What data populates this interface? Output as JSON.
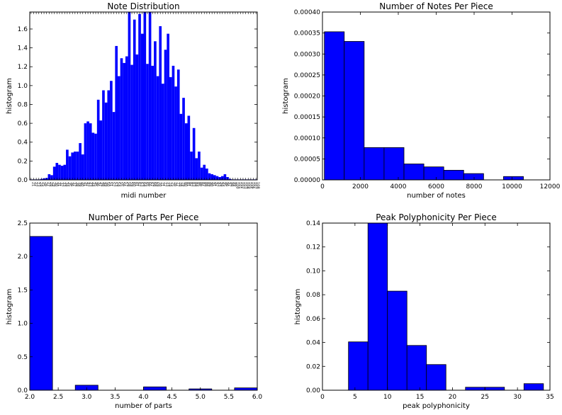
{
  "figure": {
    "background": "#ffffff"
  },
  "bar_color": "#0000ff",
  "bar_edge": "#000000",
  "chart_data": [
    {
      "type": "bar",
      "title": "Note Distribution",
      "xlabel": "midi number",
      "ylabel": "histogram",
      "xlim": [
        21,
        109
      ],
      "ylim": [
        0,
        1.78
      ],
      "yticks": [
        "0.0",
        "0.2",
        "0.4",
        "0.6",
        "0.8",
        "1.0",
        "1.2",
        "1.4",
        "1.6"
      ],
      "x_start": 21,
      "x_tick_labels": [
        "21",
        "22",
        "23",
        "24",
        "25",
        "26",
        "27",
        "28",
        "29",
        "30",
        "31",
        "32",
        "33",
        "34",
        "35",
        "36",
        "37",
        "38",
        "39",
        "40",
        "41",
        "42",
        "43",
        "44",
        "45",
        "46",
        "47",
        "48",
        "49",
        "50",
        "51",
        "52",
        "53",
        "54",
        "55",
        "56",
        "57",
        "58",
        "59",
        "60",
        "61",
        "62",
        "63",
        "64",
        "65",
        "66",
        "67",
        "68",
        "69",
        "70",
        "71",
        "72",
        "73",
        "74",
        "75",
        "76",
        "77",
        "78",
        "79",
        "80",
        "81",
        "82",
        "83",
        "84",
        "85",
        "86",
        "87",
        "88",
        "89",
        "90",
        "91",
        "92",
        "93",
        "94",
        "95",
        "96",
        "97",
        "98",
        "99",
        "100",
        "101",
        "102",
        "103",
        "104",
        "105",
        "106",
        "107",
        "108"
      ],
      "values": [
        0.005,
        0.005,
        0.005,
        0.005,
        0.01,
        0.015,
        0.02,
        0.06,
        0.05,
        0.14,
        0.18,
        0.16,
        0.15,
        0.16,
        0.32,
        0.25,
        0.29,
        0.3,
        0.3,
        0.39,
        0.27,
        0.6,
        0.62,
        0.6,
        0.5,
        0.49,
        0.85,
        0.63,
        0.95,
        0.82,
        0.95,
        1.05,
        0.72,
        1.42,
        1.1,
        1.29,
        1.24,
        1.31,
        1.78,
        1.22,
        1.7,
        1.33,
        1.76,
        1.55,
        1.78,
        1.23,
        1.85,
        1.21,
        1.47,
        1.1,
        1.63,
        1.02,
        1.38,
        1.55,
        1.09,
        1.21,
        0.99,
        1.17,
        0.7,
        0.87,
        0.6,
        0.68,
        0.3,
        0.55,
        0.23,
        0.3,
        0.13,
        0.16,
        0.12,
        0.07,
        0.06,
        0.05,
        0.04,
        0.03,
        0.04,
        0.06,
        0.03,
        0.01,
        0.005,
        0.005,
        0.005,
        0.005,
        0.005,
        0.005,
        0.005,
        0.005,
        0.005,
        0.005
      ]
    },
    {
      "type": "histogram",
      "title": "Number of Notes Per Piece",
      "xlabel": "number of notes",
      "ylabel": "histogram",
      "xlim": [
        0,
        12000
      ],
      "ylim": [
        0,
        0.0004
      ],
      "xticks": [
        0,
        2000,
        4000,
        6000,
        8000,
        10000,
        12000
      ],
      "xtick_labels": [
        "0",
        "2000",
        "4000",
        "6000",
        "8000",
        "10000",
        "12000"
      ],
      "yticks": [
        0,
        5e-05,
        0.0001,
        0.00015,
        0.0002,
        0.00025,
        0.0003,
        0.00035,
        0.0004
      ],
      "ytick_labels": [
        "0.00000",
        "0.00005",
        "0.00010",
        "0.00015",
        "0.00020",
        "0.00025",
        "0.00030",
        "0.00035",
        "0.00040"
      ],
      "bins": [
        [
          100,
          1150
        ],
        [
          1150,
          2200
        ],
        [
          2200,
          3250
        ],
        [
          3250,
          4300
        ],
        [
          4300,
          5350
        ],
        [
          5350,
          6400
        ],
        [
          6400,
          7450
        ],
        [
          7450,
          8500
        ],
        [
          8500,
          9550
        ],
        [
          9550,
          10600
        ]
      ],
      "values": [
        0.000353,
        0.00033,
        7.7e-05,
        7.7e-05,
        3.8e-05,
        3.1e-05,
        2.3e-05,
        1.5e-05,
        0.0,
        8e-06
      ]
    },
    {
      "type": "histogram",
      "title": "Number of Parts Per Piece",
      "xlabel": "number of parts",
      "ylabel": "histogram",
      "xlim": [
        2.0,
        6.0
      ],
      "ylim": [
        0,
        2.5
      ],
      "xticks": [
        2.0,
        2.5,
        3.0,
        3.5,
        4.0,
        4.5,
        5.0,
        5.5,
        6.0
      ],
      "xtick_labels": [
        "2.0",
        "2.5",
        "3.0",
        "3.5",
        "4.0",
        "4.5",
        "5.0",
        "5.5",
        "6.0"
      ],
      "yticks": [
        0,
        0.5,
        1.0,
        1.5,
        2.0,
        2.5
      ],
      "ytick_labels": [
        "0.0",
        "0.5",
        "1.0",
        "1.5",
        "2.0",
        "2.5"
      ],
      "bins": [
        [
          2.0,
          2.4
        ],
        [
          2.4,
          2.8
        ],
        [
          2.8,
          3.2
        ],
        [
          3.2,
          3.6
        ],
        [
          3.6,
          4.0
        ],
        [
          4.0,
          4.4
        ],
        [
          4.4,
          4.8
        ],
        [
          4.8,
          5.2
        ],
        [
          5.2,
          5.6
        ],
        [
          5.6,
          6.0
        ]
      ],
      "values": [
        2.3,
        0,
        0.075,
        0,
        0,
        0.05,
        0,
        0.02,
        0,
        0.035
      ]
    },
    {
      "type": "histogram",
      "title": "Peak Polyphonicity Per Piece",
      "xlabel": "peak polyphonicity",
      "ylabel": "histogram",
      "xlim": [
        0,
        35
      ],
      "ylim": [
        0,
        0.14
      ],
      "xticks": [
        0,
        5,
        10,
        15,
        20,
        25,
        30,
        35
      ],
      "xtick_labels": [
        "0",
        "5",
        "10",
        "15",
        "20",
        "25",
        "30",
        "35"
      ],
      "yticks": [
        0,
        0.02,
        0.04,
        0.06,
        0.08,
        0.1,
        0.12,
        0.14
      ],
      "ytick_labels": [
        "0.00",
        "0.02",
        "0.04",
        "0.06",
        "0.08",
        "0.10",
        "0.12",
        "0.14"
      ],
      "bins": [
        [
          4,
          7
        ],
        [
          7,
          10
        ],
        [
          10,
          13
        ],
        [
          13,
          16
        ],
        [
          16,
          19
        ],
        [
          19,
          22
        ],
        [
          22,
          25
        ],
        [
          25,
          28
        ],
        [
          28,
          31
        ],
        [
          31,
          34
        ]
      ],
      "values": [
        0.0405,
        0.145,
        0.083,
        0.0375,
        0.0215,
        0,
        0.0025,
        0.0025,
        0,
        0.0055
      ]
    }
  ]
}
